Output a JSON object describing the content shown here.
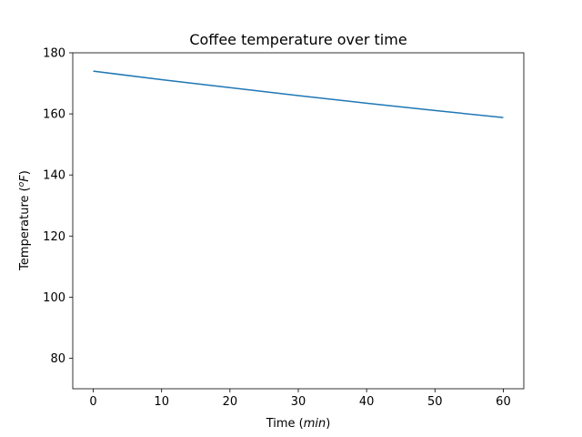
{
  "chart_data": {
    "type": "line",
    "title": "Coffee temperature over time",
    "xlabel_text": "Time (",
    "xlabel_unit": "min",
    "xlabel_close": ")",
    "ylabel_text": "Temperature (",
    "ylabel_sup": "o",
    "ylabel_unit": "F",
    "ylabel_close": ")",
    "xlim": [
      -3,
      63
    ],
    "ylim": [
      70,
      180
    ],
    "xticks": [
      0,
      10,
      20,
      30,
      40,
      50,
      60
    ],
    "yticks": [
      80,
      100,
      120,
      140,
      160,
      180
    ],
    "xtick_labels": [
      "0",
      "10",
      "20",
      "30",
      "40",
      "50",
      "60"
    ],
    "ytick_labels": [
      "80",
      "100",
      "120",
      "140",
      "160",
      "180"
    ],
    "grid": false,
    "series": [
      {
        "color": "#1f77b4",
        "x": [
          0,
          10,
          20,
          30,
          40,
          50,
          60
        ],
        "y": [
          174,
          171.2,
          168.6,
          166.0,
          163.5,
          161.1,
          158.8
        ]
      }
    ]
  }
}
